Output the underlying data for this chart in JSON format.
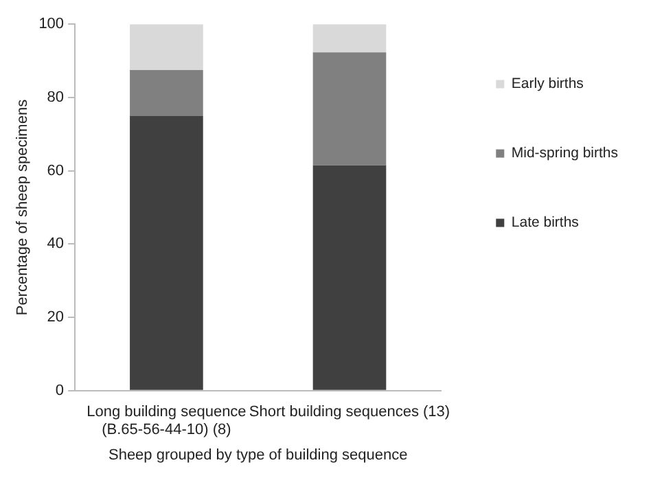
{
  "chart_data": {
    "type": "bar",
    "stacked": true,
    "xlabel": "Sheep grouped by type of building sequence",
    "ylabel": "Percentage of sheep specimens",
    "categories": [
      "Long building sequence\n(B.65-56-44-10) (8)",
      "Short building sequences (13)"
    ],
    "series": [
      {
        "name": "Late births",
        "color": "#404040",
        "values": [
          75,
          61.5
        ]
      },
      {
        "name": "Mid-spring births",
        "color": "#808080",
        "values": [
          12.5,
          30.8
        ]
      },
      {
        "name": "Early births",
        "color": "#d9d9d9",
        "values": [
          12.5,
          7.7
        ]
      }
    ],
    "ylim": [
      0,
      100
    ],
    "yticks": [
      0,
      20,
      40,
      60,
      80,
      100
    ],
    "grid": false,
    "legend": "right"
  }
}
